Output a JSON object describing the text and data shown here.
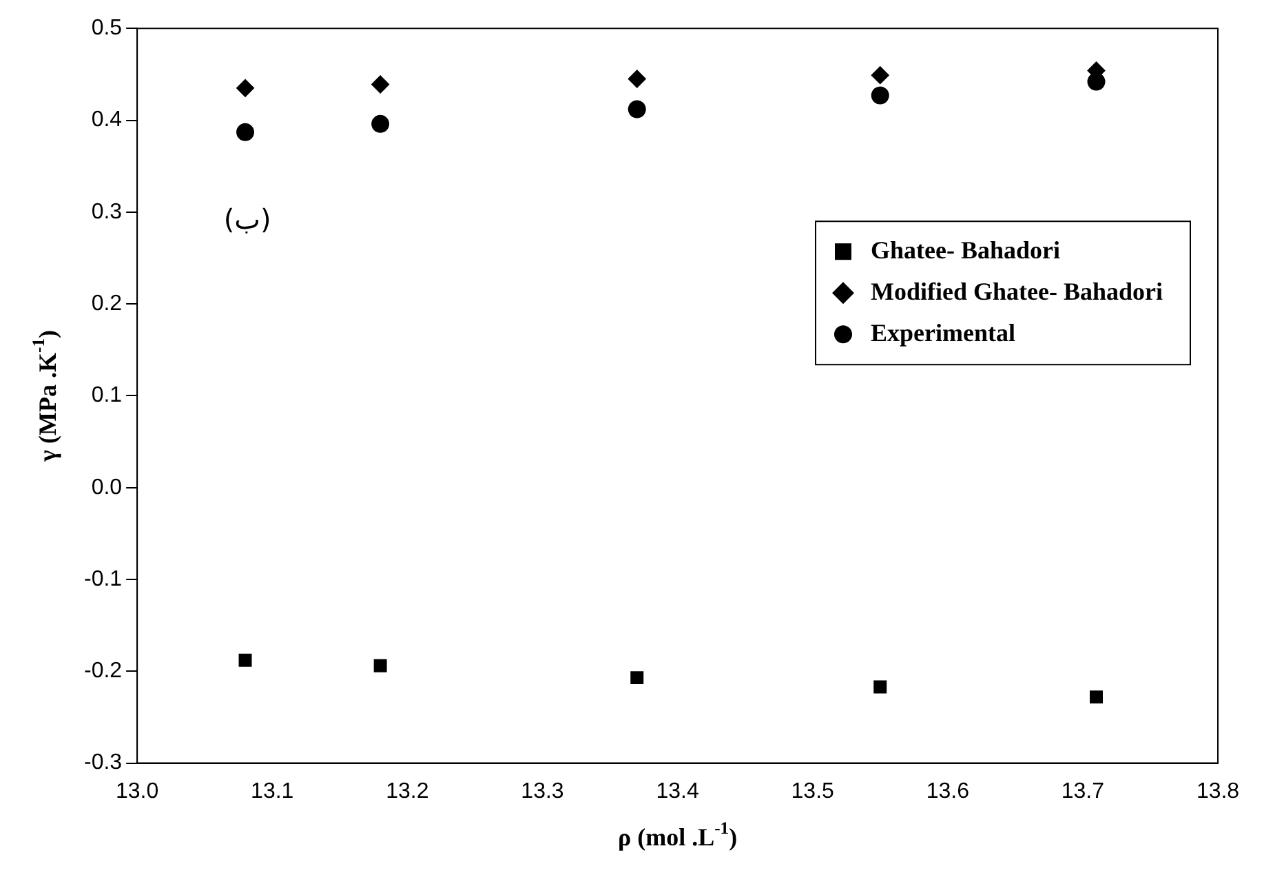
{
  "chart_data": {
    "type": "scatter",
    "xlabel": "ρ (mol .L$^{-1}$)",
    "ylabel": "γ (MPa .K$^{-1}$)",
    "xlim": [
      13.0,
      13.8
    ],
    "xticks": [
      {
        "value": 13.0,
        "label": "13.0"
      },
      13.1,
      13.2,
      13.3,
      13.4,
      13.5,
      13.6,
      13.7,
      {
        "value": 13.8,
        "label": "13.8"
      }
    ],
    "ylim": [
      -0.3,
      0.5
    ],
    "yticks": [
      -0.3,
      -0.2,
      -0.1,
      {
        "value": 0,
        "label": "0.0"
      },
      0.1,
      0.2,
      0.3,
      0.4,
      0.5
    ],
    "x": [
      13.08,
      13.18,
      13.37,
      13.55,
      13.71
    ],
    "series": [
      {
        "name": "Ghatee- Bahadori",
        "color": "#000000",
        "marker": "square",
        "values": [
          -0.188,
          -0.194,
          -0.207,
          -0.217,
          -0.228
        ]
      },
      {
        "name": "Modified Ghatee- Bahadori",
        "color": "#000000",
        "marker": "diamond",
        "values": [
          0.435,
          0.439,
          0.445,
          0.449,
          0.454
        ]
      },
      {
        "name": "Experimental",
        "color": "#000000",
        "marker": "circle",
        "values": [
          0.387,
          0.396,
          0.412,
          0.427,
          0.442
        ]
      }
    ],
    "annotations": [
      "(ب)"
    ],
    "grid": false,
    "legend": "top right"
  }
}
